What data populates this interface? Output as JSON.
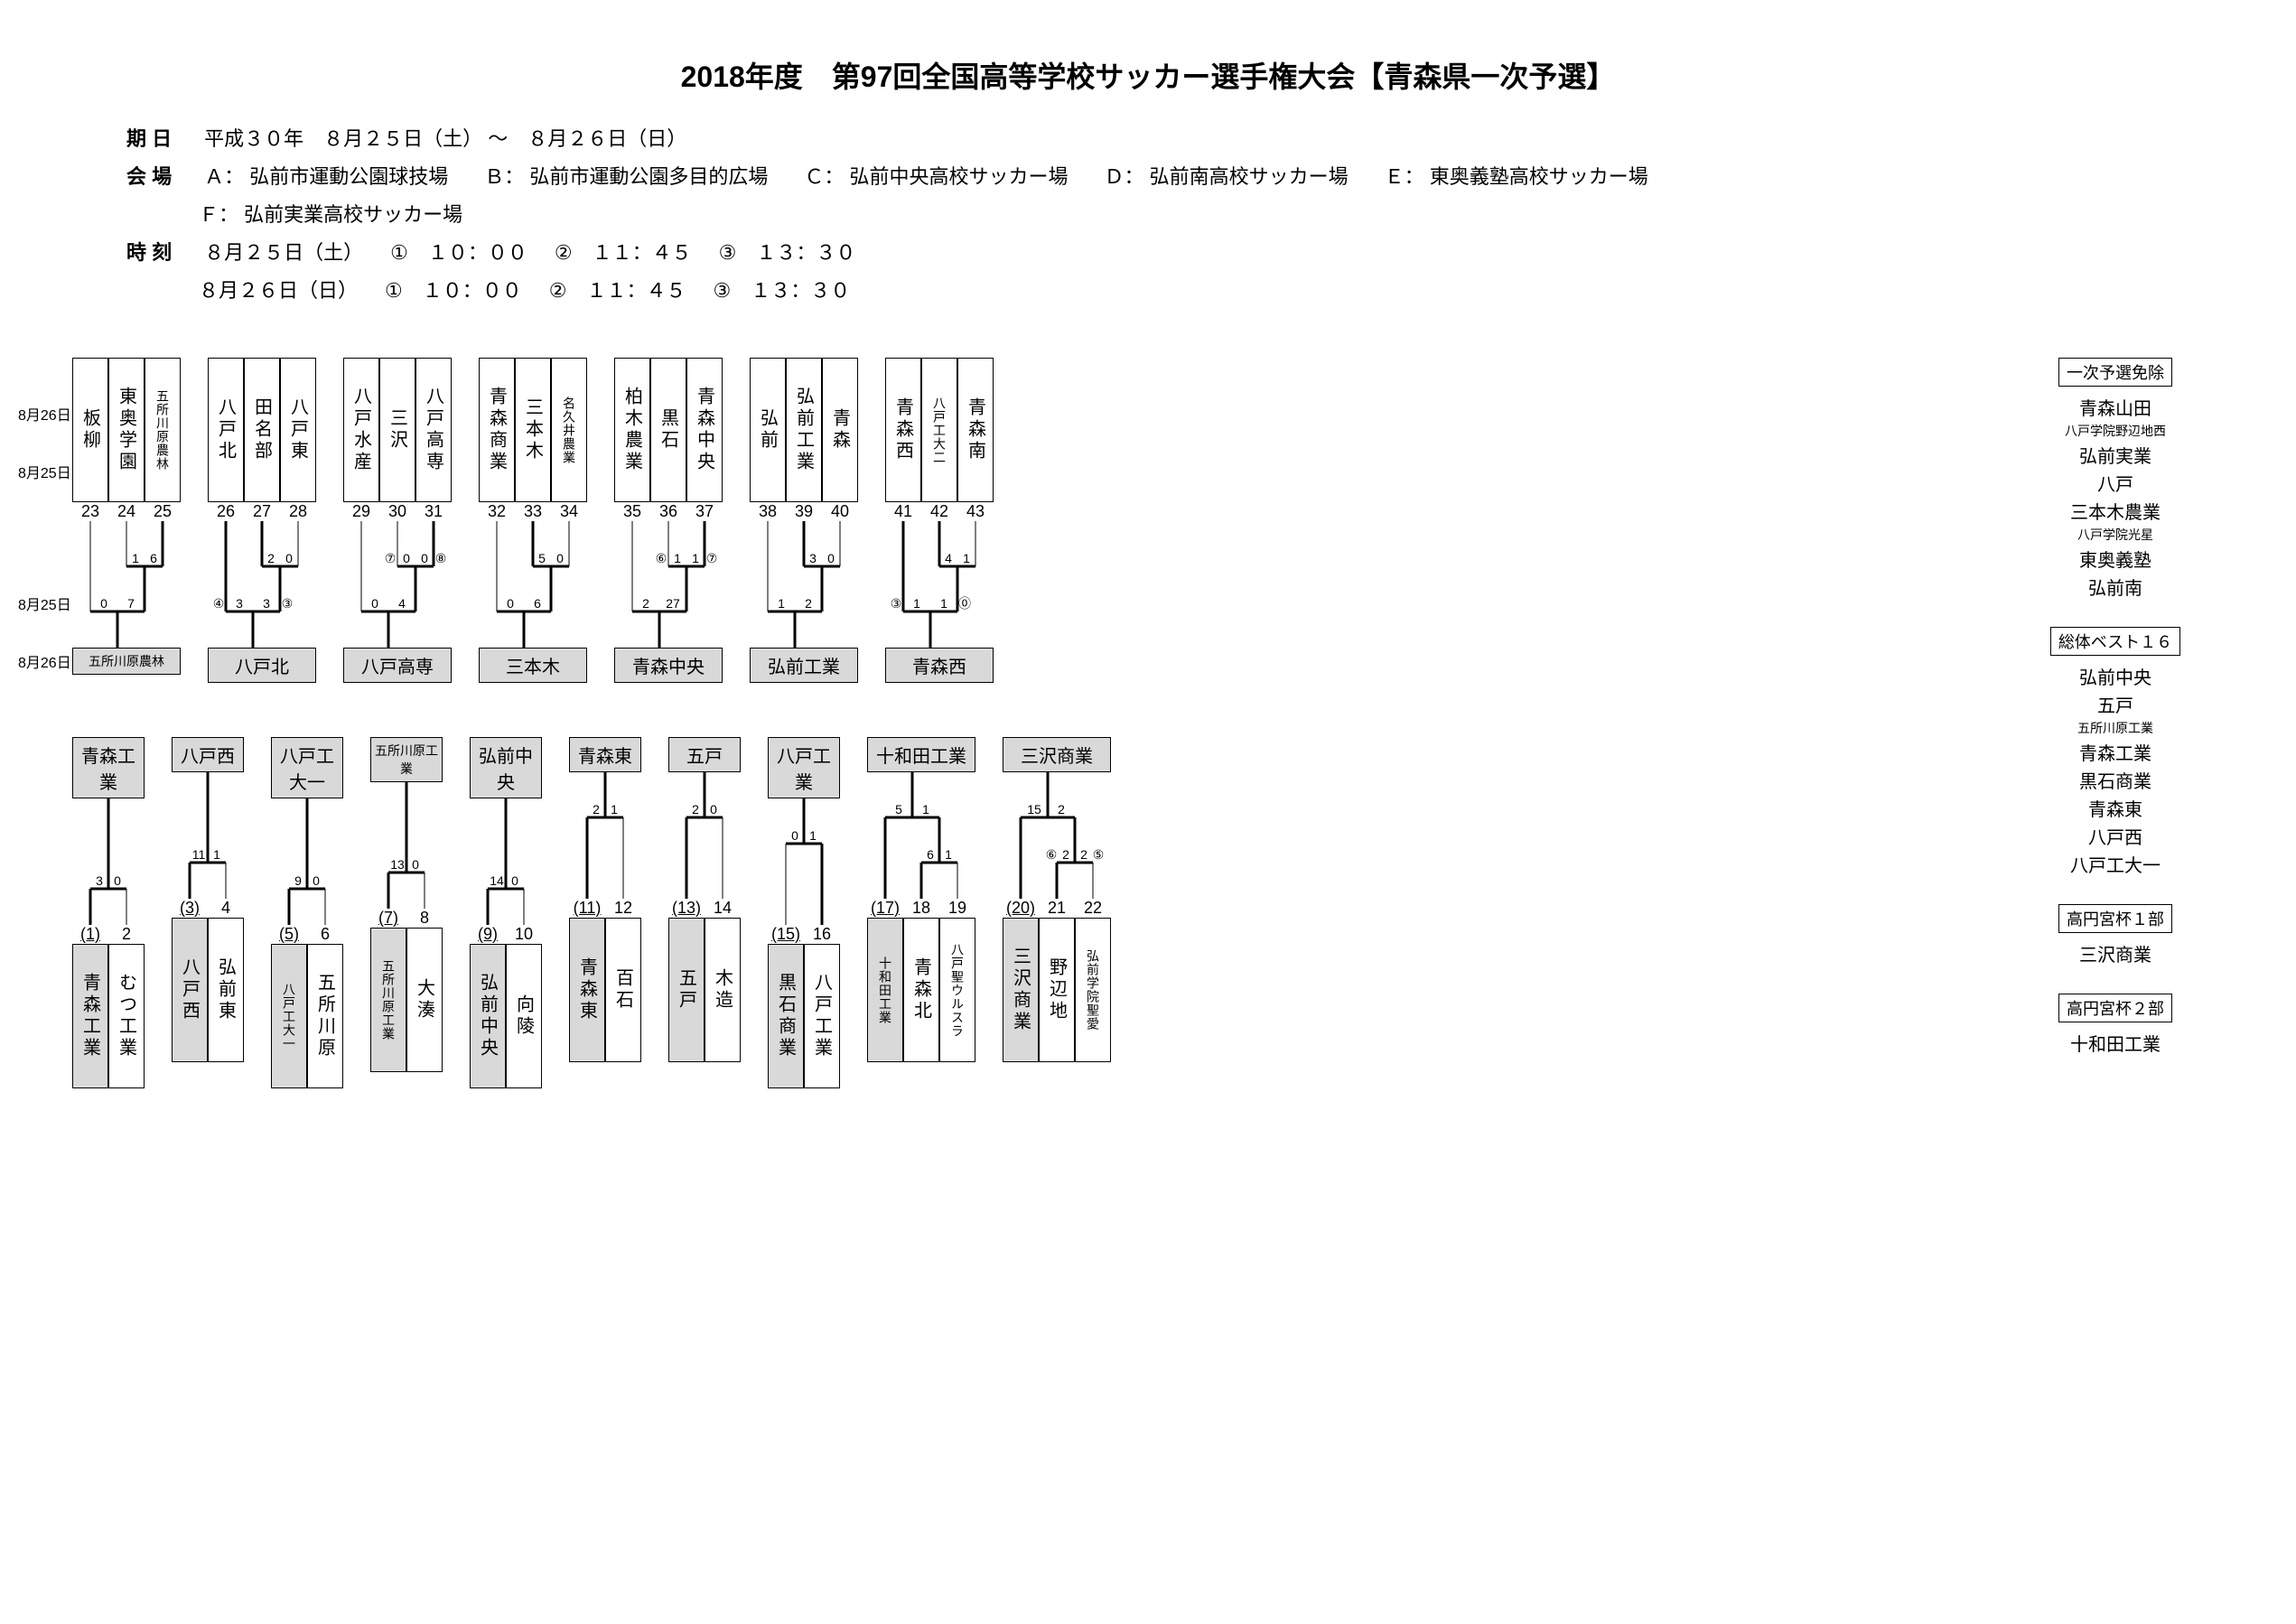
{
  "title": "2018年度　第97回全国高等学校サッカー選手権大会【青森県一次予選】",
  "period_label": "期 日",
  "period_text": "平成３０年　８月２５日（土） ～　８月２６日（日）",
  "venue_label": "会 場",
  "venues": [
    {
      "code": "Ａ：",
      "name": "弘前市運動公園球技場"
    },
    {
      "code": "Ｂ：",
      "name": "弘前市運動公園多目的広場"
    },
    {
      "code": "Ｃ：",
      "name": "弘前中央高校サッカー場"
    },
    {
      "code": "Ｄ：",
      "name": "弘前南高校サッカー場"
    },
    {
      "code": "Ｅ：",
      "name": "東奥義塾高校サッカー場"
    },
    {
      "code": "Ｆ：",
      "name": "弘前実業高校サッカー場"
    }
  ],
  "time_label": "時 刻",
  "schedule": [
    {
      "date": "８月２５日（土）",
      "times": [
        "①　１０：００",
        "②　１１：４５",
        "③　１３：３０"
      ]
    },
    {
      "date": "８月２６日（日）",
      "times": [
        "①　１０：００",
        "②　１１：４５",
        "③　１３：３０"
      ]
    }
  ],
  "date_labels": [
    "8月25日",
    "8月26日"
  ],
  "upper_groups": [
    {
      "teams": [
        {
          "num": 23,
          "name": "板柳"
        },
        {
          "num": 24,
          "name": "東奥学園"
        },
        {
          "num": 25,
          "name": "五所川原農林",
          "small": true
        }
      ],
      "r1": {
        "s1": "1",
        "s2": "6",
        "bold_right": true
      },
      "final": {
        "s1": "0",
        "s2": "7",
        "bold_right": true
      },
      "winner": "五所川原農林",
      "winner_small": true
    },
    {
      "teams": [
        {
          "num": 26,
          "name": "八戸北"
        },
        {
          "num": 27,
          "name": "田名部"
        },
        {
          "num": 28,
          "name": "八戸東"
        }
      ],
      "r1": {
        "s1": "2",
        "s2": "0",
        "bold_left": true
      },
      "final": {
        "s1": "3",
        "s2": "3",
        "pk_l": "④",
        "pk_r": "③",
        "bold_left": true
      },
      "winner": "八戸北"
    },
    {
      "teams": [
        {
          "num": 29,
          "name": "八戸水産"
        },
        {
          "num": 30,
          "name": "三沢"
        },
        {
          "num": 31,
          "name": "八戸高専"
        }
      ],
      "r1": {
        "s1": "0",
        "s2": "0",
        "pk_l": "⑦",
        "pk_r": "⑧",
        "bold_right": true
      },
      "final": {
        "s1": "0",
        "s2": "4",
        "bold_right": true
      },
      "winner": "八戸高専"
    },
    {
      "teams": [
        {
          "num": 32,
          "name": "青森商業"
        },
        {
          "num": 33,
          "name": "三本木"
        },
        {
          "num": 34,
          "name": "名久井農業",
          "small": true
        }
      ],
      "r1": {
        "s1": "5",
        "s2": "0",
        "bold_left": true
      },
      "final": {
        "s1": "0",
        "s2": "6",
        "bold_right": true
      },
      "winner": "三本木"
    },
    {
      "teams": [
        {
          "num": 35,
          "name": "柏木農業"
        },
        {
          "num": 36,
          "name": "黒石"
        },
        {
          "num": 37,
          "name": "青森中央"
        }
      ],
      "r1": {
        "s1": "1",
        "s2": "1",
        "pk_l": "⑥",
        "pk_r": "⑦",
        "bold_right": true
      },
      "final": {
        "s1": "2",
        "s2": "27",
        "bold_right": true
      },
      "winner": "青森中央"
    },
    {
      "teams": [
        {
          "num": 38,
          "name": "弘前"
        },
        {
          "num": 39,
          "name": "弘前工業"
        },
        {
          "num": 40,
          "name": "青森"
        }
      ],
      "r1": {
        "s1": "3",
        "s2": "0",
        "bold_left": true
      },
      "final": {
        "s1": "1",
        "s2": "2",
        "bold_right": true
      },
      "winner": "弘前工業"
    },
    {
      "teams": [
        {
          "num": 41,
          "name": "青森西"
        },
        {
          "num": 42,
          "name": "八戸工大二",
          "small": true
        },
        {
          "num": 43,
          "name": "青森南"
        }
      ],
      "r1": {
        "s1": "4",
        "s2": "1",
        "bold_left": true
      },
      "final": {
        "s1": "1",
        "s2": "1",
        "pk_l": "③",
        "pk_r": "⓪",
        "bold_left": true
      },
      "winner": "青森西"
    }
  ],
  "lower_groups": [
    {
      "seed": "青森工業",
      "teams": [
        {
          "num": 1,
          "name": "青森工業",
          "shaded": true,
          "circled": true
        },
        {
          "num": 2,
          "name": "むつ工業"
        }
      ],
      "r1": {
        "s1": "3",
        "s2": "0",
        "bold_left": true
      }
    },
    {
      "seed": "八戸西",
      "teams": [
        {
          "num": 3,
          "name": "八戸西",
          "shaded": true,
          "circled": true
        },
        {
          "num": 4,
          "name": "弘前東"
        }
      ],
      "r1": {
        "s1": "11",
        "s2": "1",
        "bold_left": true
      }
    },
    {
      "seed": "八戸工大一",
      "teams": [
        {
          "num": 5,
          "name": "八戸工大一",
          "shaded": true,
          "circled": true,
          "small": true
        },
        {
          "num": 6,
          "name": "五所川原"
        }
      ],
      "r1": {
        "s1": "9",
        "s2": "0",
        "bold_left": true
      }
    },
    {
      "seed": "五所川原工業",
      "seed_small": true,
      "teams": [
        {
          "num": 7,
          "name": "五所川原工業",
          "shaded": true,
          "circled": true,
          "small": true
        },
        {
          "num": 8,
          "name": "大湊"
        }
      ],
      "r1": {
        "s1": "13",
        "s2": "0",
        "bold_left": true
      }
    },
    {
      "seed": "弘前中央",
      "teams": [
        {
          "num": 9,
          "name": "弘前中央",
          "shaded": true,
          "circled": true
        },
        {
          "num": 10,
          "name": "向陵"
        }
      ],
      "r1": {
        "s1": "14",
        "s2": "0",
        "bold_left": true
      }
    },
    {
      "seed": "青森東",
      "teams": [
        {
          "num": 11,
          "name": "青森東",
          "shaded": true,
          "circled": true
        },
        {
          "num": 12,
          "name": "百石"
        }
      ],
      "final_top": {
        "s1": "2",
        "s2": "1",
        "bold_left": true
      }
    },
    {
      "seed": "五戸",
      "teams": [
        {
          "num": 13,
          "name": "五戸",
          "shaded": true,
          "circled": true
        },
        {
          "num": 14,
          "name": "木造"
        }
      ],
      "final_top": {
        "s1": "2",
        "s2": "0",
        "bold_left": true
      }
    },
    {
      "seed": "八戸工業",
      "teams": [
        {
          "num": 15,
          "name": "黒石商業",
          "shaded": true,
          "circled": true
        },
        {
          "num": 16,
          "name": "八戸工業"
        }
      ],
      "final_top": {
        "s1": "0",
        "s2": "1",
        "bold_right": true
      }
    },
    {
      "seed": "十和田工業",
      "teams": [
        {
          "num": 17,
          "name": "十和田工業",
          "shaded": true,
          "circled": true,
          "small": true
        },
        {
          "num": 18,
          "name": "青森北"
        },
        {
          "num": 19,
          "name": "八戸聖ウルスラ",
          "small": true
        }
      ],
      "final_top": {
        "s1": "5",
        "s2": "1",
        "bold_left": true
      },
      "r1": {
        "s1": "6",
        "s2": "1",
        "bold_left": true
      }
    },
    {
      "seed": "三沢商業",
      "teams": [
        {
          "num": 20,
          "name": "三沢商業",
          "shaded": true,
          "circled": true
        },
        {
          "num": 21,
          "name": "野辺地"
        },
        {
          "num": 22,
          "name": "弘前学院聖愛",
          "small": true
        }
      ],
      "final_top": {
        "s1": "15",
        "s2": "2",
        "bold_left": true
      },
      "r1": {
        "s1": "2",
        "s2": "2",
        "pk_l": "⑥",
        "pk_r": "⑤",
        "bold_left": true
      }
    }
  ],
  "sidebar": [
    {
      "header": "一次予選免除",
      "items": [
        {
          "text": "青森山田"
        },
        {
          "text": "八戸学院野辺地西",
          "small": true
        },
        {
          "text": "弘前実業"
        },
        {
          "text": "八戸"
        },
        {
          "text": "三本木農業"
        },
        {
          "text": "八戸学院光星",
          "small": true
        },
        {
          "text": "東奥義塾"
        },
        {
          "text": "弘前南"
        }
      ]
    },
    {
      "header": "総体ベスト１６",
      "items": [
        {
          "text": "弘前中央"
        },
        {
          "text": "五戸"
        },
        {
          "text": "五所川原工業",
          "small": true
        },
        {
          "text": "青森工業"
        },
        {
          "text": "黒石商業"
        },
        {
          "text": "青森東"
        },
        {
          "text": "八戸西"
        },
        {
          "text": "八戸工大一"
        }
      ]
    },
    {
      "header": "高円宮杯１部",
      "items": [
        {
          "text": "三沢商業"
        }
      ]
    },
    {
      "header": "高円宮杯２部",
      "items": [
        {
          "text": "十和田工業"
        }
      ]
    }
  ],
  "colors": {
    "line": "#000000",
    "bold_stroke": 3,
    "thin_stroke": 1,
    "shade": "#d9d9d9",
    "bg": "#ffffff"
  }
}
